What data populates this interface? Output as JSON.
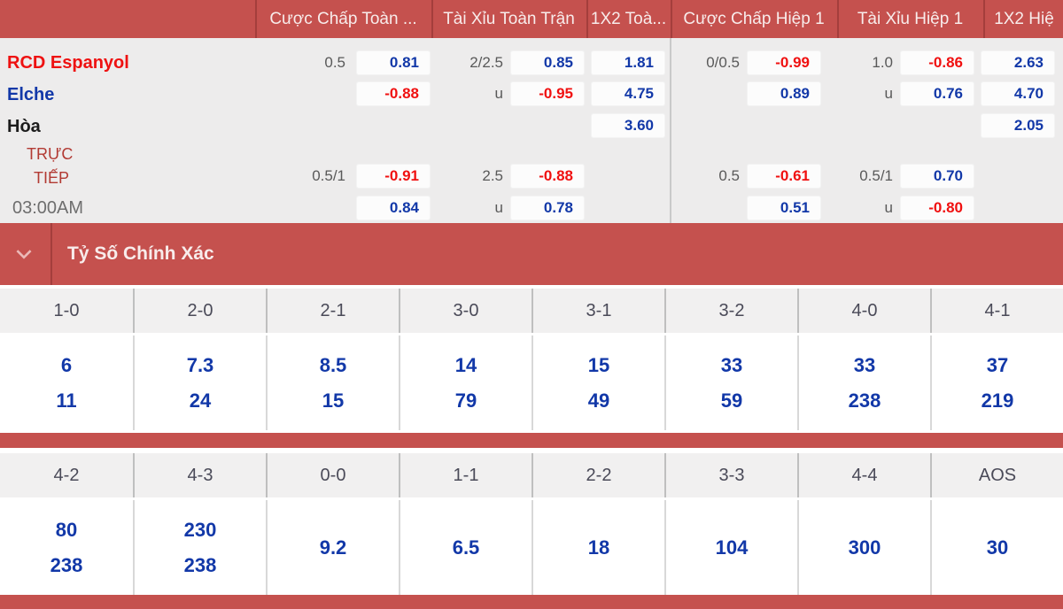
{
  "match": {
    "home_team": "RCD Espanyol",
    "away_team": "Elche",
    "draw_label": "Hòa",
    "live_label_line1": "TRỰC",
    "live_label_line2": "TIẾP",
    "kickoff_time": "03:00AM"
  },
  "market_headers": {
    "handicap_full": "Cược Chấp Toàn ...",
    "over_under_full": "Tài Xỉu Toàn Trận",
    "one_x_two_full": "1X2 Toà...",
    "handicap_h1": "Cược Chấp Hiệp 1",
    "over_under_h1": "Tài Xỉu Hiệp 1",
    "one_x_two_h1": "1X2 Hiệ"
  },
  "odds": {
    "r1": {
      "ah_line": "0.5",
      "ah": "0.81",
      "ou_line": "2/2.5",
      "ou": "0.85",
      "x12": "1.81",
      "h1_ah_line": "0/0.5",
      "h1_ah": "-0.99",
      "h1_ou_line": "1.0",
      "h1_ou": "-0.86",
      "h1_x12": "2.63"
    },
    "r2": {
      "ah": "-0.88",
      "ou_line": "u",
      "ou": "-0.95",
      "x12": "4.75",
      "h1_ah": "0.89",
      "h1_ou_line": "u",
      "h1_ou": "0.76",
      "h1_x12": "4.70"
    },
    "r3": {
      "x12": "3.60",
      "h1_x12": "2.05"
    },
    "r4": {
      "ah_line": "0.5/1",
      "ah": "-0.91",
      "ou_line": "2.5",
      "ou": "-0.88",
      "h1_ah_line": "0.5",
      "h1_ah": "-0.61",
      "h1_ou_line": "0.5/1",
      "h1_ou": "0.70"
    },
    "r5": {
      "ah": "0.84",
      "ou_line": "u",
      "ou": "0.78",
      "h1_ah": "0.51",
      "h1_ou_line": "u",
      "h1_ou": "-0.80"
    }
  },
  "correct_score": {
    "title": "Tỷ Số Chính Xác",
    "grid1": [
      {
        "score": "1-0",
        "odds": [
          "6",
          "11"
        ]
      },
      {
        "score": "2-0",
        "odds": [
          "7.3",
          "24"
        ]
      },
      {
        "score": "2-1",
        "odds": [
          "8.5",
          "15"
        ]
      },
      {
        "score": "3-0",
        "odds": [
          "14",
          "79"
        ]
      },
      {
        "score": "3-1",
        "odds": [
          "15",
          "49"
        ]
      },
      {
        "score": "3-2",
        "odds": [
          "33",
          "59"
        ]
      },
      {
        "score": "4-0",
        "odds": [
          "33",
          "238"
        ]
      },
      {
        "score": "4-1",
        "odds": [
          "37",
          "219"
        ]
      }
    ],
    "grid2": [
      {
        "score": "4-2",
        "odds": [
          "80",
          "238"
        ]
      },
      {
        "score": "4-3",
        "odds": [
          "230",
          "238"
        ]
      },
      {
        "score": "0-0",
        "odds": [
          "9.2"
        ]
      },
      {
        "score": "1-1",
        "odds": [
          "6.5"
        ]
      },
      {
        "score": "2-2",
        "odds": [
          "18"
        ]
      },
      {
        "score": "3-3",
        "odds": [
          "104"
        ]
      },
      {
        "score": "4-4",
        "odds": [
          "300"
        ]
      },
      {
        "score": "AOS",
        "odds": [
          "30"
        ]
      }
    ]
  },
  "colors": {
    "accent_red": "#C5514E",
    "divider_dark_red": "#A43E3C",
    "odds_blue": "#1238A8",
    "odds_red": "#F01010"
  }
}
